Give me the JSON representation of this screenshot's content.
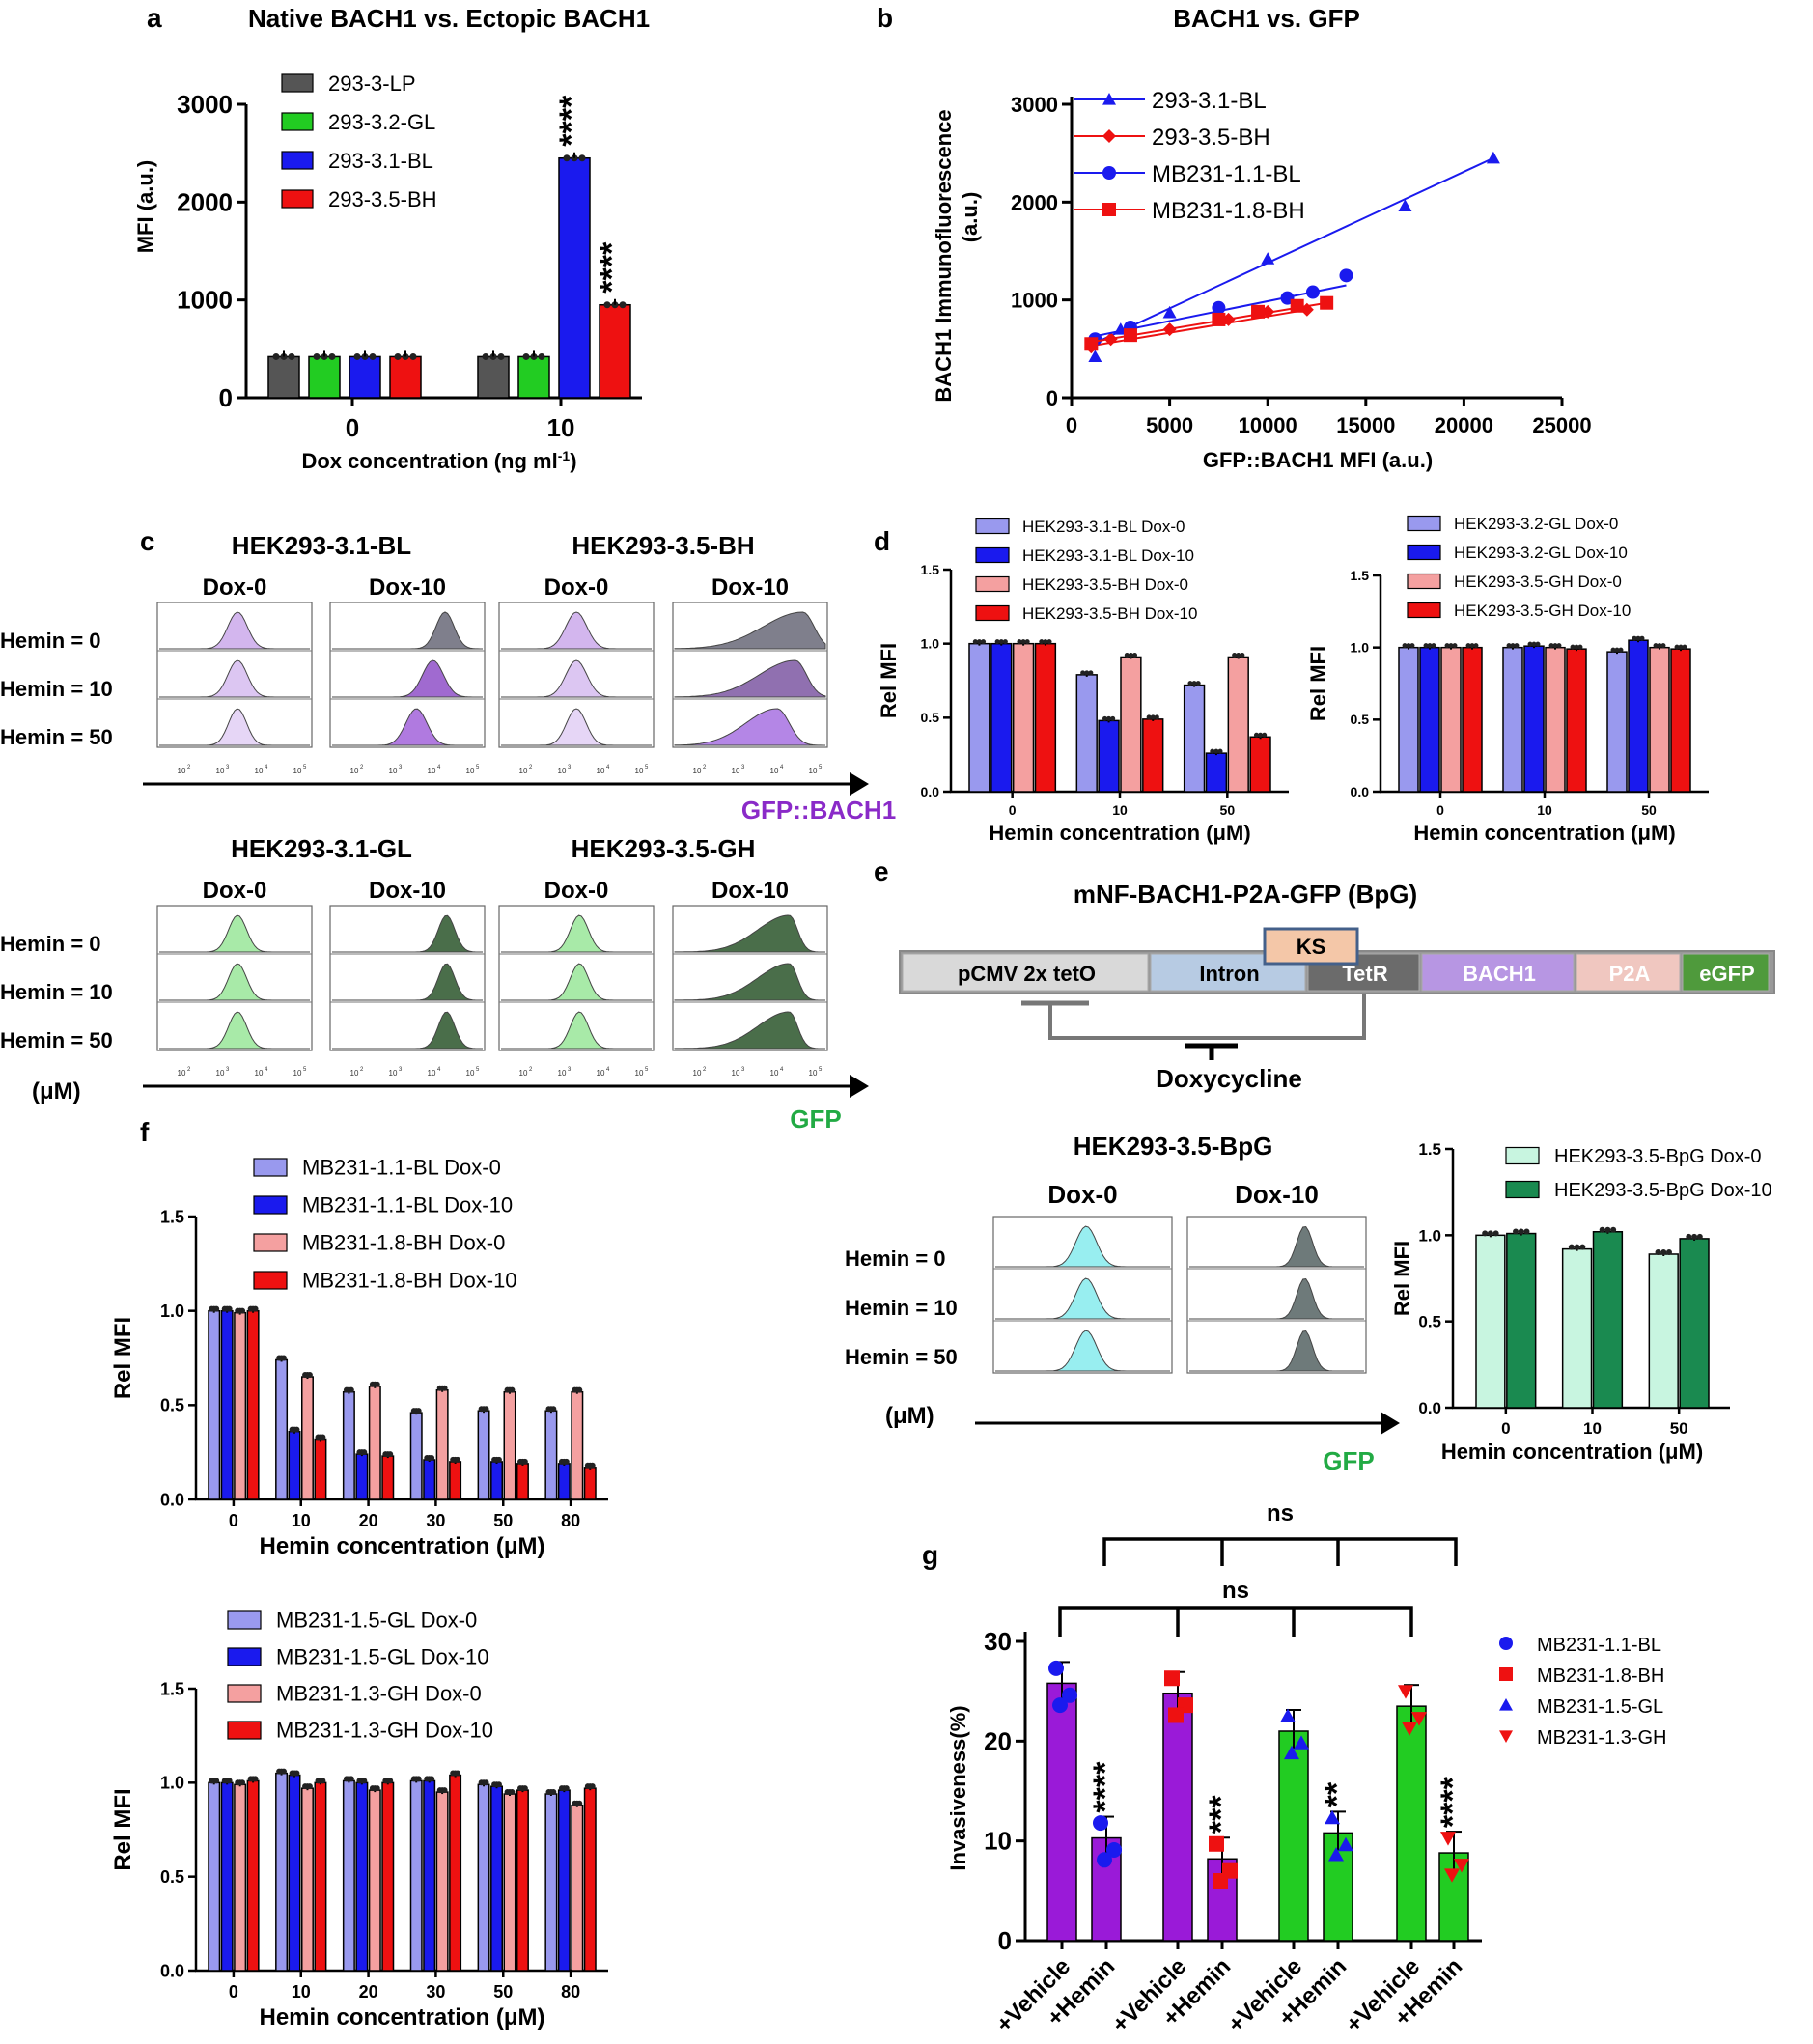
{
  "colors": {
    "gray": "#555555",
    "green": "#22cc22",
    "blue": "#1a1aee",
    "red": "#ee1111",
    "lightblue": "#9999ee",
    "pink": "#f4a0a0",
    "mint": "#c8f5e0",
    "teal": "#1a8a50",
    "purple": "#9a1ad8",
    "purple_hist": "#c9a2e8",
    "green_hist": "#a8eaa8",
    "cyan_hist": "#98eef0",
    "gray_hist": "#7f7f8c"
  },
  "panels": {
    "a": "a",
    "b": "b",
    "c": "c",
    "d": "d",
    "e": "e",
    "f": "f",
    "g": "g"
  },
  "chart_data": [
    {
      "id": "a",
      "type": "bar",
      "title": "Native BACH1 vs. Ectopic BACH1",
      "xlabel": "Dox concentration (ng ml",
      "xlabel_sup": "-1",
      "xlabel_end": ")",
      "ylabel": "MFI (a.u.)",
      "ylim": [
        0,
        3000
      ],
      "yticks": [
        "0",
        "1000",
        "2000",
        "3000"
      ],
      "categories": [
        "0",
        "10"
      ],
      "series": [
        {
          "name": "293-3-LP",
          "color": "#555555",
          "values": [
            420,
            420
          ]
        },
        {
          "name": "293-3.2-GL",
          "color": "#22cc22",
          "values": [
            420,
            420
          ]
        },
        {
          "name": "293-3.1-BL",
          "color": "#1a1aee",
          "values": [
            420,
            2450
          ]
        },
        {
          "name": "293-3.5-BH",
          "color": "#ee1111",
          "values": [
            420,
            950
          ]
        }
      ],
      "annotations": [
        "****",
        "****"
      ]
    },
    {
      "id": "b",
      "type": "scatter",
      "title": "BACH1 vs. GFP",
      "xlabel": "GFP::BACH1 MFI (a.u.)",
      "ylabel": "BACH1 Immunofluorescence",
      "ylabel2": "(a.u.)",
      "xlim": [
        0,
        25000
      ],
      "ylim": [
        0,
        3000
      ],
      "xticks": [
        "0",
        "5000",
        "10000",
        "15000",
        "20000",
        "25000"
      ],
      "yticks": [
        "0",
        "1000",
        "2000",
        "3000"
      ],
      "series": [
        {
          "name": "293-3.1-BL",
          "color": "#1a1aee",
          "marker": "triangle",
          "points": [
            [
              1200,
              420
            ],
            [
              2500,
              700
            ],
            [
              5000,
              870
            ],
            [
              10000,
              1420
            ],
            [
              17000,
              1960
            ],
            [
              21500,
              2450
            ]
          ],
          "fit": [
            [
              1200,
              560
            ],
            [
              21500,
              2450
            ]
          ]
        },
        {
          "name": "293-3.5-BH",
          "color": "#ee1111",
          "marker": "diamond",
          "points": [
            [
              1000,
              520
            ],
            [
              2000,
              600
            ],
            [
              5000,
              700
            ],
            [
              8000,
              800
            ],
            [
              10000,
              880
            ],
            [
              12000,
              900
            ]
          ],
          "fit": [
            [
              1000,
              530
            ],
            [
              12000,
              900
            ]
          ]
        },
        {
          "name": "MB231-1.1-BL",
          "color": "#1a1aee",
          "marker": "circle",
          "points": [
            [
              1200,
              600
            ],
            [
              3000,
              720
            ],
            [
              7500,
              920
            ],
            [
              11000,
              1020
            ],
            [
              12300,
              1080
            ],
            [
              14000,
              1250
            ]
          ],
          "fit": [
            [
              1200,
              630
            ],
            [
              14000,
              1150
            ]
          ]
        },
        {
          "name": "MB231-1.8-BH",
          "color": "#ee1111",
          "marker": "square",
          "points": [
            [
              1000,
              550
            ],
            [
              3000,
              640
            ],
            [
              7500,
              800
            ],
            [
              9500,
              880
            ],
            [
              11500,
              940
            ],
            [
              13000,
              970
            ]
          ],
          "fit": [
            [
              1000,
              570
            ],
            [
              13000,
              970
            ]
          ]
        }
      ]
    },
    {
      "id": "c",
      "type": "histogram-grid",
      "top_titles": [
        "HEK293-3.1-BL",
        "HEK293-3.5-BH"
      ],
      "bottom_titles": [
        "HEK293-3.1-GL",
        "HEK293-3.5-GH"
      ],
      "col_labels": [
        "Dox-0",
        "Dox-10",
        "Dox-0",
        "Dox-10"
      ],
      "row_labels": [
        "Hemin = 0",
        "Hemin = 10",
        "Hemin = 50"
      ],
      "unit": "(μM)",
      "top_xlabel": "GFP::BACH1",
      "bottom_xlabel": "GFP",
      "axis_ticks": [
        "10",
        "10",
        "10",
        "10"
      ],
      "axis_exps": [
        "2",
        "3",
        "4",
        "5"
      ]
    },
    {
      "id": "d-left",
      "type": "bar",
      "xlabel": "Hemin concentration (μM)",
      "ylabel": "Rel MFI",
      "ylim": [
        0,
        1.5
      ],
      "yticks": [
        "0.0",
        "0.5",
        "1.0",
        "1.5"
      ],
      "categories": [
        "0",
        "10",
        "50"
      ],
      "series": [
        {
          "name": "HEK293-3.1-BL Dox-0",
          "color": "#9999ee",
          "values": [
            1.0,
            0.79,
            0.72
          ]
        },
        {
          "name": "HEK293-3.1-BL Dox-10",
          "color": "#1a1aee",
          "values": [
            1.0,
            0.48,
            0.26
          ]
        },
        {
          "name": "HEK293-3.5-BH Dox-0",
          "color": "#f4a0a0",
          "values": [
            1.0,
            0.91,
            0.91
          ]
        },
        {
          "name": "HEK293-3.5-BH Dox-10",
          "color": "#ee1111",
          "values": [
            1.0,
            0.49,
            0.37
          ]
        }
      ]
    },
    {
      "id": "d-right",
      "type": "bar",
      "xlabel": "Hemin concentration (μM)",
      "ylabel": "Rel MFI",
      "ylim": [
        0,
        1.5
      ],
      "yticks": [
        "0.0",
        "0.5",
        "1.0",
        "1.5"
      ],
      "categories": [
        "0",
        "10",
        "50"
      ],
      "series": [
        {
          "name": "HEK293-3.2-GL Dox-0",
          "color": "#9999ee",
          "values": [
            1.0,
            1.0,
            0.97
          ]
        },
        {
          "name": "HEK293-3.2-GL Dox-10",
          "color": "#1a1aee",
          "values": [
            1.0,
            1.01,
            1.05
          ]
        },
        {
          "name": "HEK293-3.5-GH Dox-0",
          "color": "#f4a0a0",
          "values": [
            1.0,
            1.0,
            1.0
          ]
        },
        {
          "name": "HEK293-3.5-GH Dox-10",
          "color": "#ee1111",
          "values": [
            1.0,
            0.99,
            0.99
          ]
        }
      ]
    },
    {
      "id": "e-construct",
      "type": "diagram",
      "title": "mNF-BACH1-P2A-GFP (BpG)",
      "segments": [
        "pCMV 2x tetO",
        "Intron",
        "TetR",
        "BACH1",
        "P2A",
        "eGFP"
      ],
      "ks": "KS",
      "inhibitor": "Doxycycline"
    },
    {
      "id": "e-hist",
      "type": "histogram-grid",
      "title": "HEK293-3.5-BpG",
      "col_labels": [
        "Dox-0",
        "Dox-10"
      ],
      "row_labels": [
        "Hemin = 0",
        "Hemin = 10",
        "Hemin = 50"
      ],
      "unit": "(μM)",
      "xlabel": "GFP"
    },
    {
      "id": "e-bar",
      "type": "bar",
      "xlabel": "Hemin concentration (μM)",
      "ylabel": "Rel MFI",
      "ylim": [
        0,
        1.5
      ],
      "yticks": [
        "0.0",
        "0.5",
        "1.0",
        "1.5"
      ],
      "categories": [
        "0",
        "10",
        "50"
      ],
      "series": [
        {
          "name": "HEK293-3.5-BpG Dox-0",
          "color": "#c8f5e0",
          "values": [
            1.0,
            0.92,
            0.89
          ]
        },
        {
          "name": "HEK293-3.5-BpG Dox-10",
          "color": "#1a8a50",
          "values": [
            1.01,
            1.02,
            0.98
          ]
        }
      ]
    },
    {
      "id": "f-top",
      "type": "bar",
      "xlabel": "Hemin concentration (μM)",
      "ylabel": "Rel MFI",
      "ylim": [
        0,
        1.5
      ],
      "yticks": [
        "0.0",
        "0.5",
        "1.0",
        "1.5"
      ],
      "categories": [
        "0",
        "10",
        "20",
        "30",
        "50",
        "80"
      ],
      "series": [
        {
          "name": "MB231-1.1-BL Dox-0",
          "color": "#9999ee",
          "values": [
            1.0,
            0.74,
            0.57,
            0.46,
            0.47,
            0.47
          ]
        },
        {
          "name": "MB231-1.1-BL Dox-10",
          "color": "#1a1aee",
          "values": [
            1.0,
            0.36,
            0.24,
            0.21,
            0.2,
            0.19
          ]
        },
        {
          "name": "MB231-1.8-BH Dox-0",
          "color": "#f4a0a0",
          "values": [
            0.99,
            0.65,
            0.6,
            0.58,
            0.57,
            0.57
          ]
        },
        {
          "name": "MB231-1.8-BH Dox-10",
          "color": "#ee1111",
          "values": [
            1.0,
            0.32,
            0.23,
            0.2,
            0.19,
            0.17
          ]
        }
      ]
    },
    {
      "id": "f-bottom",
      "type": "bar",
      "xlabel": "Hemin concentration (μM)",
      "ylabel": "Rel MFI",
      "ylim": [
        0,
        1.5
      ],
      "yticks": [
        "0.0",
        "0.5",
        "1.0",
        "1.5"
      ],
      "categories": [
        "0",
        "10",
        "20",
        "30",
        "50",
        "80"
      ],
      "series": [
        {
          "name": "MB231-1.5-GL Dox-0",
          "color": "#9999ee",
          "values": [
            1.0,
            1.05,
            1.01,
            1.01,
            0.99,
            0.94
          ]
        },
        {
          "name": "MB231-1.5-GL Dox-10",
          "color": "#1a1aee",
          "values": [
            1.0,
            1.04,
            1.0,
            1.01,
            0.98,
            0.96
          ]
        },
        {
          "name": "MB231-1.3-GH Dox-0",
          "color": "#f4a0a0",
          "values": [
            0.99,
            0.97,
            0.96,
            0.95,
            0.94,
            0.88
          ]
        },
        {
          "name": "MB231-1.3-GH Dox-10",
          "color": "#ee1111",
          "values": [
            1.01,
            1.0,
            1.0,
            1.04,
            0.96,
            0.97
          ]
        }
      ]
    },
    {
      "id": "g",
      "type": "bar",
      "ylabel": "Invasiveness(%)",
      "ylim": [
        0,
        30
      ],
      "yticks": [
        "0",
        "10",
        "20",
        "30"
      ],
      "categories": [
        "+Vehicle",
        "+Hemin",
        "+Vehicle",
        "+Hemin",
        "+Vehicle",
        "+Hemin",
        "+Vehicle",
        "+Hemin"
      ],
      "values": [
        25.8,
        10.3,
        24.8,
        8.2,
        21.0,
        10.8,
        23.5,
        8.8
      ],
      "bar_colors": [
        "#9a1ad8",
        "#9a1ad8",
        "#9a1ad8",
        "#9a1ad8",
        "#22cc22",
        "#22cc22",
        "#22cc22",
        "#22cc22"
      ],
      "stars": [
        "",
        "****",
        "",
        "***",
        "",
        "**",
        "",
        "****"
      ],
      "ns": [
        "ns",
        "ns"
      ],
      "legend": [
        {
          "name": "MB231-1.1-BL",
          "color": "#1a1aee",
          "marker": "circle"
        },
        {
          "name": "MB231-1.8-BH",
          "color": "#ee1111",
          "marker": "square"
        },
        {
          "name": "MB231-1.5-GL",
          "color": "#1a1aee",
          "marker": "triangle"
        },
        {
          "name": "MB231-1.3-GH",
          "color": "#ee1111",
          "marker": "tri-down"
        }
      ]
    }
  ]
}
